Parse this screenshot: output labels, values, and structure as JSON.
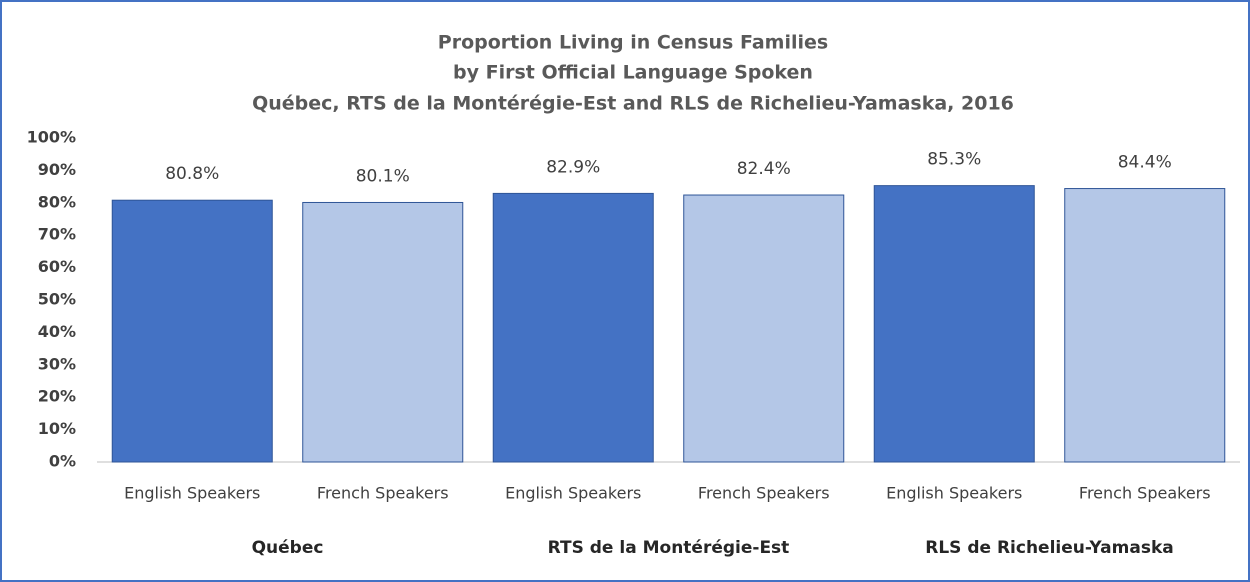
{
  "chart_data": {
    "type": "bar",
    "title": [
      "Proportion Living in Census Families",
      "by First Official Language Spoken",
      "Québec, RTS de la Montérégie-Est and RLS de Richelieu-Yamaska, 2016"
    ],
    "categories": [
      "English Speakers",
      "French Speakers",
      "English Speakers",
      "French Speakers",
      "English Speakers",
      "French Speakers"
    ],
    "groups": [
      "Québec",
      "RTS de la Montérégie-Est",
      "RLS de Richelieu-Yamaska"
    ],
    "values": [
      80.8,
      80.1,
      82.9,
      82.4,
      85.3,
      84.4
    ],
    "value_labels": [
      "80.8%",
      "80.1%",
      "82.9%",
      "82.4%",
      "85.3%",
      "84.4%"
    ],
    "colors": [
      "#4472c4",
      "#b4c7e7",
      "#4472c4",
      "#b4c7e7",
      "#4472c4",
      "#b4c7e7"
    ],
    "ylim": [
      0,
      100
    ],
    "yticks": [
      {
        "value": 0,
        "label": "0%"
      },
      {
        "value": 10,
        "label": "10%"
      },
      {
        "value": 20,
        "label": "20%"
      },
      {
        "value": 30,
        "label": "30%"
      },
      {
        "value": 40,
        "label": "40%"
      },
      {
        "value": 50,
        "label": "50%"
      },
      {
        "value": 60,
        "label": "60%"
      },
      {
        "value": 70,
        "label": "70%"
      },
      {
        "value": 80,
        "label": "80%"
      },
      {
        "value": 90,
        "label": "90%"
      },
      {
        "value": 100,
        "label": "100%"
      }
    ],
    "grid": false
  }
}
